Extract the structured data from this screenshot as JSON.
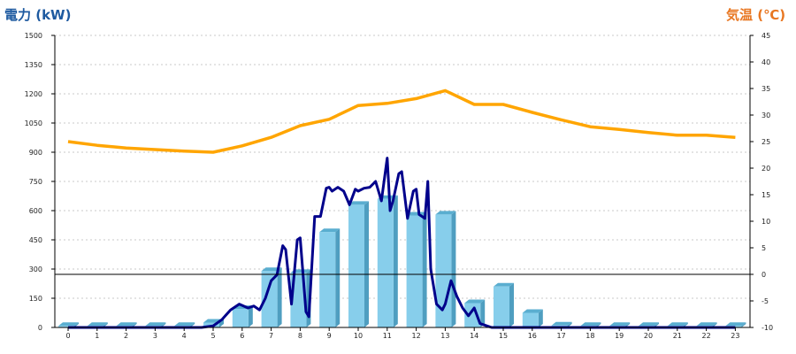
{
  "chart_data": {
    "type": "bar+line",
    "left_axis_title": "電力 (kW)",
    "right_axis_title": "気温 (℃)",
    "left_axis_color": "#1e5aa0",
    "right_axis_color": "#e87722",
    "bar_color": "#87ceeb",
    "power_line_color": "#00008b",
    "temp_line_color": "#ffa500",
    "x_ticks": [
      "0",
      "1",
      "2",
      "3",
      "4",
      "5",
      "6",
      "7",
      "8",
      "9",
      "10",
      "11",
      "12",
      "13",
      "14",
      "15",
      "16",
      "17",
      "18",
      "19",
      "20",
      "21",
      "22",
      "23"
    ],
    "y_left": {
      "min": 0,
      "max": 1500,
      "ticks": [
        "0",
        "150",
        "300",
        "450",
        "600",
        "750",
        "900",
        "1050",
        "1200",
        "1350",
        "1500"
      ]
    },
    "y_right": {
      "min": -10,
      "max": 45,
      "ticks": [
        "-10",
        "-5",
        "0",
        "5",
        "10",
        "15",
        "20",
        "25",
        "30",
        "35",
        "40",
        "45"
      ]
    },
    "grid": "horizontal dotted",
    "zero_line_right_axis": 0,
    "hourly_power_bars": [
      8,
      8,
      8,
      8,
      8,
      25,
      95,
      290,
      280,
      490,
      630,
      660,
      575,
      580,
      125,
      210,
      75,
      10,
      8,
      8,
      8,
      8,
      8,
      8
    ],
    "power_line": {
      "x": [
        0,
        1,
        2,
        3,
        4,
        4.6,
        5,
        5.3,
        5.6,
        5.9,
        6.2,
        6.4,
        6.6,
        6.8,
        7.0,
        7.2,
        7.4,
        7.5,
        7.7,
        7.9,
        8.0,
        8.2,
        8.3,
        8.5,
        8.7,
        8.9,
        9.0,
        9.1,
        9.3,
        9.5,
        9.7,
        9.9,
        10.0,
        10.2,
        10.4,
        10.6,
        10.8,
        11.0,
        11.1,
        11.2,
        11.4,
        11.5,
        11.7,
        11.9,
        12.0,
        12.1,
        12.3,
        12.4,
        12.5,
        12.7,
        12.9,
        13.0,
        13.2,
        13.4,
        13.6,
        13.8,
        14.0,
        14.2,
        14.4,
        14.6,
        14.8,
        15.0,
        15.2,
        15.4,
        15.6,
        15.8,
        16.0,
        16.2,
        16.4,
        16.6,
        16.8,
        17.0,
        18,
        19,
        20,
        21,
        22,
        23
      ],
      "y": [
        0,
        0,
        0,
        0,
        0,
        0,
        8,
        40,
        90,
        120,
        100,
        110,
        90,
        150,
        240,
        270,
        420,
        400,
        120,
        450,
        460,
        80,
        55,
        570,
        570,
        715,
        720,
        700,
        720,
        700,
        630,
        710,
        700,
        715,
        720,
        750,
        650,
        870,
        600,
        650,
        790,
        800,
        560,
        700,
        710,
        580,
        560,
        750,
        300,
        120,
        90,
        120,
        240,
        160,
        100,
        60,
        100,
        20,
        10,
        0,
        0,
        0,
        0,
        0,
        0,
        0,
        0,
        0,
        0,
        0,
        0,
        0,
        0,
        0,
        0,
        0,
        0,
        0
      ]
    },
    "temperature_line": {
      "x": [
        0,
        1,
        2,
        3,
        4,
        5,
        6,
        7,
        8,
        9,
        10,
        11,
        12,
        13,
        14,
        15,
        16,
        17,
        18,
        19,
        20,
        21,
        22,
        23
      ],
      "y": [
        25,
        24.3,
        23.8,
        23.5,
        23.2,
        23,
        24.2,
        25.8,
        28,
        29.2,
        31.8,
        32.2,
        33.1,
        34.6,
        32,
        32,
        30.5,
        29.1,
        27.8,
        27.3,
        26.7,
        26.2,
        26.2,
        25.8
      ]
    }
  }
}
